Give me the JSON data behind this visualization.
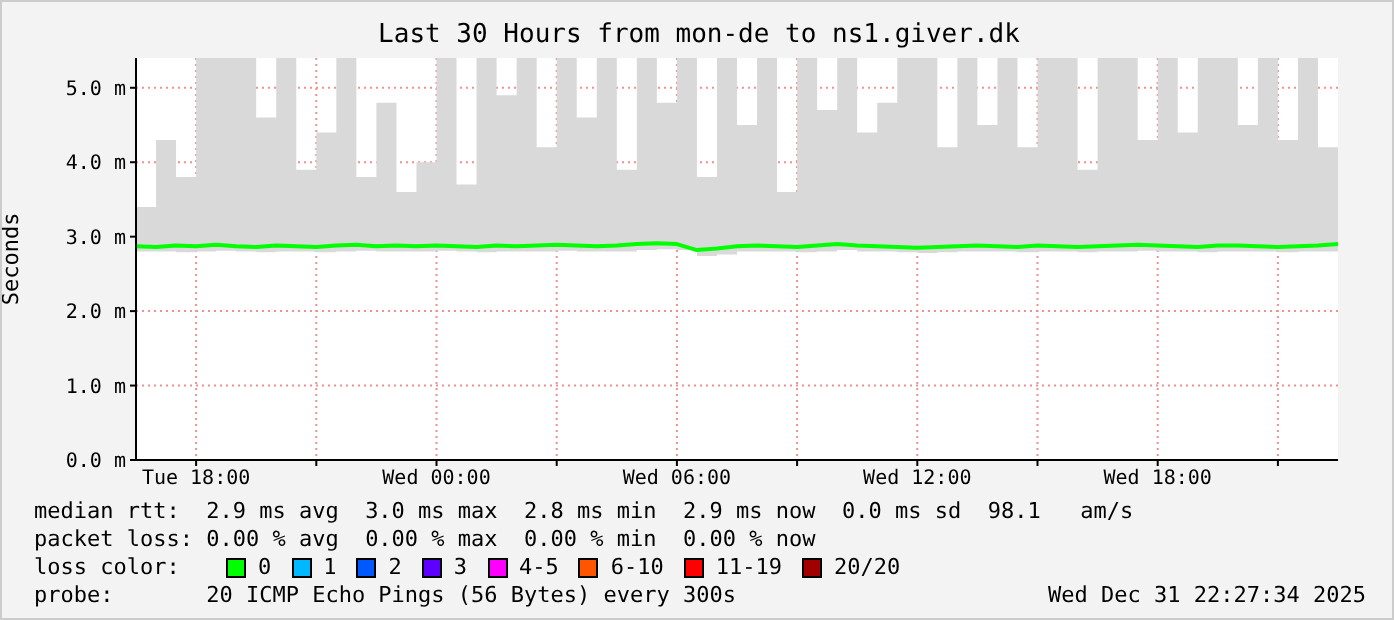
{
  "chart_data": {
    "type": "line",
    "title": "Last 30 Hours from mon-de to ns1.giver.dk",
    "ylabel": "Seconds",
    "x": [
      "2025-12-30T16:30",
      "2025-12-30T17:00",
      "2025-12-30T17:30",
      "2025-12-30T18:00",
      "2025-12-30T18:30",
      "2025-12-30T19:00",
      "2025-12-30T19:30",
      "2025-12-30T20:00",
      "2025-12-30T20:30",
      "2025-12-30T21:00",
      "2025-12-30T21:30",
      "2025-12-30T22:00",
      "2025-12-30T22:30",
      "2025-12-30T23:00",
      "2025-12-30T23:30",
      "2025-12-31T00:00",
      "2025-12-31T00:30",
      "2025-12-31T01:00",
      "2025-12-31T01:30",
      "2025-12-31T02:00",
      "2025-12-31T02:30",
      "2025-12-31T03:00",
      "2025-12-31T03:30",
      "2025-12-31T04:00",
      "2025-12-31T04:30",
      "2025-12-31T05:00",
      "2025-12-31T05:30",
      "2025-12-31T06:00",
      "2025-12-31T06:30",
      "2025-12-31T07:00",
      "2025-12-31T07:30",
      "2025-12-31T08:00",
      "2025-12-31T08:30",
      "2025-12-31T09:00",
      "2025-12-31T09:30",
      "2025-12-31T10:00",
      "2025-12-31T10:30",
      "2025-12-31T11:00",
      "2025-12-31T11:30",
      "2025-12-31T12:00",
      "2025-12-31T12:30",
      "2025-12-31T13:00",
      "2025-12-31T13:30",
      "2025-12-31T14:00",
      "2025-12-31T14:30",
      "2025-12-31T15:00",
      "2025-12-31T15:30",
      "2025-12-31T16:00",
      "2025-12-31T16:30",
      "2025-12-31T17:00",
      "2025-12-31T17:30",
      "2025-12-31T18:00",
      "2025-12-31T18:30",
      "2025-12-31T19:00",
      "2025-12-31T19:30",
      "2025-12-31T20:00",
      "2025-12-31T20:30",
      "2025-12-31T21:00",
      "2025-12-31T21:30",
      "2025-12-31T22:00",
      "2025-12-31T22:30"
    ],
    "series": [
      {
        "name": "0",
        "color": "#00ff00",
        "values": [
          2.87,
          2.86,
          2.88,
          2.87,
          2.89,
          2.87,
          2.86,
          2.88,
          2.87,
          2.86,
          2.88,
          2.89,
          2.87,
          2.88,
          2.87,
          2.88,
          2.87,
          2.86,
          2.88,
          2.87,
          2.88,
          2.89,
          2.88,
          2.87,
          2.88,
          2.9,
          2.91,
          2.9,
          2.82,
          2.84,
          2.87,
          2.88,
          2.87,
          2.86,
          2.88,
          2.9,
          2.88,
          2.87,
          2.86,
          2.85,
          2.86,
          2.87,
          2.88,
          2.87,
          2.86,
          2.88,
          2.87,
          2.86,
          2.87,
          2.88,
          2.89,
          2.88,
          2.87,
          2.86,
          2.88,
          2.88,
          2.87,
          2.86,
          2.87,
          2.88,
          2.9
        ],
        "lower": [
          2.8,
          2.8,
          2.79,
          2.8,
          2.81,
          2.8,
          2.79,
          2.8,
          2.8,
          2.79,
          2.8,
          2.81,
          2.8,
          2.8,
          2.8,
          2.81,
          2.8,
          2.79,
          2.8,
          2.8,
          2.8,
          2.81,
          2.8,
          2.8,
          2.8,
          2.82,
          2.83,
          2.82,
          2.74,
          2.76,
          2.8,
          2.8,
          2.8,
          2.79,
          2.8,
          2.82,
          2.8,
          2.8,
          2.79,
          2.78,
          2.79,
          2.8,
          2.8,
          2.8,
          2.79,
          2.8,
          2.8,
          2.79,
          2.8,
          2.8,
          2.81,
          2.8,
          2.8,
          2.79,
          2.8,
          2.8,
          2.8,
          2.79,
          2.8,
          2.8,
          2.82
        ],
        "upper": [
          3.4,
          4.3,
          3.8,
          5.4,
          5.4,
          5.4,
          4.6,
          5.4,
          3.9,
          4.4,
          5.4,
          3.8,
          4.8,
          3.6,
          4.0,
          5.4,
          3.7,
          5.4,
          4.9,
          5.4,
          4.2,
          5.4,
          4.6,
          5.4,
          3.9,
          5.4,
          4.8,
          5.4,
          3.8,
          5.4,
          4.5,
          5.4,
          3.6,
          5.4,
          4.7,
          5.4,
          4.4,
          4.8,
          5.4,
          5.4,
          4.2,
          5.4,
          4.5,
          5.4,
          4.2,
          5.4,
          5.4,
          3.9,
          5.4,
          5.4,
          4.3,
          5.4,
          4.4,
          5.4,
          5.4,
          4.5,
          5.4,
          4.3,
          5.4,
          4.2,
          3.5
        ]
      },
      {
        "name": "1",
        "color": "#00b8ff",
        "values": [
          null,
          null,
          null,
          null,
          null,
          null,
          null,
          null,
          null,
          null,
          null,
          null,
          null,
          null,
          null,
          null,
          null,
          null,
          null,
          null,
          null,
          null,
          null,
          null,
          null,
          null,
          null,
          null,
          null,
          null,
          null,
          null,
          null,
          null,
          null,
          null,
          null,
          null,
          null,
          null,
          null,
          null,
          null,
          null,
          null,
          null,
          null,
          null,
          null,
          null,
          null,
          null,
          null,
          null,
          null,
          null,
          null,
          null,
          null,
          null,
          null
        ]
      },
      {
        "name": "2",
        "color": "#0059ff",
        "values": [
          null,
          null,
          null,
          null,
          null,
          null,
          null,
          null,
          null,
          null,
          null,
          null,
          null,
          null,
          null,
          null,
          null,
          null,
          null,
          null,
          null,
          null,
          null,
          null,
          null,
          null,
          null,
          null,
          null,
          null,
          null,
          null,
          null,
          null,
          null,
          null,
          null,
          null,
          null,
          null,
          null,
          null,
          null,
          null,
          null,
          null,
          null,
          null,
          null,
          null,
          null,
          null,
          null,
          null,
          null,
          null,
          null,
          null,
          null,
          null,
          null
        ]
      },
      {
        "name": "3",
        "color": "#5e00ff",
        "values": [
          null,
          null,
          null,
          null,
          null,
          null,
          null,
          null,
          null,
          null,
          null,
          null,
          null,
          null,
          null,
          null,
          null,
          null,
          null,
          null,
          null,
          null,
          null,
          null,
          null,
          null,
          null,
          null,
          null,
          null,
          null,
          null,
          null,
          null,
          null,
          null,
          null,
          null,
          null,
          null,
          null,
          null,
          null,
          null,
          null,
          null,
          null,
          null,
          null,
          null,
          null,
          null,
          null,
          null,
          null,
          null,
          null,
          null,
          null,
          null,
          null
        ]
      },
      {
        "name": "4-5",
        "color": "#ff00ff",
        "values": [
          null,
          null,
          null,
          null,
          null,
          null,
          null,
          null,
          null,
          null,
          null,
          null,
          null,
          null,
          null,
          null,
          null,
          null,
          null,
          null,
          null,
          null,
          null,
          null,
          null,
          null,
          null,
          null,
          null,
          null,
          null,
          null,
          null,
          null,
          null,
          null,
          null,
          null,
          null,
          null,
          null,
          null,
          null,
          null,
          null,
          null,
          null,
          null,
          null,
          null,
          null,
          null,
          null,
          null,
          null,
          null,
          null,
          null,
          null,
          null,
          null
        ]
      },
      {
        "name": "6-10",
        "color": "#ff5500",
        "values": [
          null,
          null,
          null,
          null,
          null,
          null,
          null,
          null,
          null,
          null,
          null,
          null,
          null,
          null,
          null,
          null,
          null,
          null,
          null,
          null,
          null,
          null,
          null,
          null,
          null,
          null,
          null,
          null,
          null,
          null,
          null,
          null,
          null,
          null,
          null,
          null,
          null,
          null,
          null,
          null,
          null,
          null,
          null,
          null,
          null,
          null,
          null,
          null,
          null,
          null,
          null,
          null,
          null,
          null,
          null,
          null,
          null,
          null,
          null,
          null,
          null
        ]
      },
      {
        "name": "11-19",
        "color": "#ff0000",
        "values": [
          null,
          null,
          null,
          null,
          null,
          null,
          null,
          null,
          null,
          null,
          null,
          null,
          null,
          null,
          null,
          null,
          null,
          null,
          null,
          null,
          null,
          null,
          null,
          null,
          null,
          null,
          null,
          null,
          null,
          null,
          null,
          null,
          null,
          null,
          null,
          null,
          null,
          null,
          null,
          null,
          null,
          null,
          null,
          null,
          null,
          null,
          null,
          null,
          null,
          null,
          null,
          null,
          null,
          null,
          null,
          null,
          null,
          null,
          null,
          null,
          null
        ]
      },
      {
        "name": "20/20",
        "color": "#a10000",
        "values": [
          null,
          null,
          null,
          null,
          null,
          null,
          null,
          null,
          null,
          null,
          null,
          null,
          null,
          null,
          null,
          null,
          null,
          null,
          null,
          null,
          null,
          null,
          null,
          null,
          null,
          null,
          null,
          null,
          null,
          null,
          null,
          null,
          null,
          null,
          null,
          null,
          null,
          null,
          null,
          null,
          null,
          null,
          null,
          null,
          null,
          null,
          null,
          null,
          null,
          null,
          null,
          null,
          null,
          null,
          null,
          null,
          null,
          null,
          null,
          null,
          null
        ]
      }
    ],
    "xlim": [
      "2025-12-30T16:30",
      "2025-12-31T22:30"
    ],
    "xticks": [
      {
        "value": "2025-12-30T18:00",
        "label": "Tue 18:00"
      },
      {
        "value": "2025-12-30T21:00",
        "label": null
      },
      {
        "value": "2025-12-31T00:00",
        "label": "Wed 00:00"
      },
      {
        "value": "2025-12-31T03:00",
        "label": null
      },
      {
        "value": "2025-12-31T06:00",
        "label": "Wed 06:00"
      },
      {
        "value": "2025-12-31T09:00",
        "label": null
      },
      {
        "value": "2025-12-31T12:00",
        "label": "Wed 12:00"
      },
      {
        "value": "2025-12-31T15:00",
        "label": null
      },
      {
        "value": "2025-12-31T18:00",
        "label": "Wed 18:00"
      },
      {
        "value": "2025-12-31T21:00",
        "label": null
      }
    ],
    "ylim": [
      0,
      5.4
    ],
    "yticks": [
      {
        "value": 0,
        "label": "0.0 m"
      },
      {
        "value": 1,
        "label": "1.0 m"
      },
      {
        "value": 2,
        "label": "2.0 m"
      },
      {
        "value": 3,
        "label": "3.0 m"
      },
      {
        "value": 4,
        "label": "4.0 m"
      },
      {
        "value": 5,
        "label": "5.0 m"
      }
    ],
    "grid": true,
    "legend": "bottom",
    "legend_title": "loss color:",
    "line_style": "solid",
    "marker": "none",
    "annotations": [
      "median rtt:  2.9 ms avg  3.0 ms max  2.8 ms min  2.9 ms now  0.0 ms sd  98.1   am/s",
      "packet loss: 0.00 % avg  0.00 % max  0.00 % min  0.00 % now",
      "probe:       20 ICMP Echo Pings (56 Bytes) every 300s",
      "Wed Dec 31 22:27:34 2025"
    ]
  }
}
